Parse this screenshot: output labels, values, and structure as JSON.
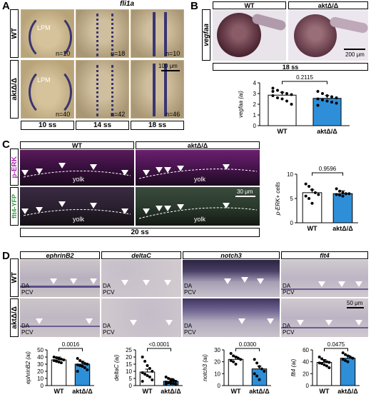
{
  "panels": {
    "A": {
      "letter": "A",
      "gene": "fli1a",
      "rows": [
        "WT",
        "aktΔ/Δ"
      ],
      "stages": [
        "10 ss",
        "14 ss",
        "18 ss"
      ],
      "lpm_label": "LPM",
      "counts": [
        [
          "n=10",
          "n=18",
          "n=10"
        ],
        [
          "n=40",
          "n=42",
          "n=46"
        ]
      ],
      "scale": "100 μm"
    },
    "B": {
      "letter": "B",
      "gene": "vegfaa",
      "cols": [
        "WT",
        "aktΔ/Δ"
      ],
      "stage": "18 ss",
      "scale": "200 μm"
    },
    "C": {
      "letter": "C",
      "cols": [
        "WT",
        "aktΔ/Δ"
      ],
      "rows": [
        "p-ERK",
        "flt4-YFP"
      ],
      "yolk": "yolk",
      "stage": "20 ss",
      "scale": "30 μm"
    },
    "D": {
      "letter": "D",
      "genes": [
        "ephrinB2",
        "deltaC",
        "notch3",
        "flt4"
      ],
      "rows": [
        "WT",
        "aktΔ/Δ"
      ],
      "da": "DA",
      "pcv": "PCV",
      "scale": "50 μm"
    }
  },
  "chart_data": [
    {
      "id": "B-vegfaa",
      "type": "bar",
      "categories": [
        "WT",
        "aktΔ/Δ"
      ],
      "values": [
        2.85,
        2.55
      ],
      "ylabel": "vegfaa (ai)",
      "ylim": [
        0,
        4
      ],
      "yticks": [
        0,
        1,
        2,
        3,
        4
      ],
      "pvalue": "0.2115",
      "colors": [
        "#ffffff",
        "#2e8fd8"
      ],
      "points": [
        [
          3.5,
          3.3,
          3.1,
          3.0,
          2.9,
          2.8,
          2.6,
          2.5,
          2.3,
          2.0,
          3.2
        ],
        [
          3.2,
          3.0,
          2.8,
          2.7,
          2.6,
          2.5,
          2.4,
          2.3,
          2.2,
          2.1,
          1.9
        ]
      ]
    },
    {
      "id": "C-pERK",
      "type": "bar",
      "categories": [
        "WT",
        "aktΔ/Δ"
      ],
      "values": [
        6.2,
        6.0
      ],
      "ylabel": "p-ERK+ cells",
      "ylim": [
        0,
        10
      ],
      "yticks": [
        0,
        5,
        10
      ],
      "pvalue": "0.9596",
      "colors": [
        "#ffffff",
        "#2e8fd8"
      ],
      "points": [
        [
          8.0,
          7.5,
          6.8,
          6.2,
          5.8,
          5.5,
          5.0,
          4.0
        ],
        [
          7.0,
          6.5,
          6.2,
          6.0,
          6.0,
          5.8,
          5.7,
          5.5
        ]
      ]
    },
    {
      "id": "D-ephrinB2",
      "type": "bar",
      "categories": [
        "WT",
        "aktΔ/Δ"
      ],
      "values": [
        36,
        30
      ],
      "ylabel": "ephrinB2 (ai)",
      "ylim": [
        0,
        50
      ],
      "yticks": [
        0,
        10,
        20,
        30,
        40,
        50
      ],
      "pvalue": "0.0016",
      "colors": [
        "#ffffff",
        "#2e8fd8"
      ],
      "points": [
        [
          40,
          39,
          38,
          37,
          36,
          35,
          34,
          33,
          32
        ],
        [
          38,
          35,
          33,
          31,
          30,
          29,
          28,
          27,
          25,
          22,
          20
        ]
      ]
    },
    {
      "id": "D-deltaC",
      "type": "bar",
      "categories": [
        "WT",
        "aktΔ/Δ"
      ],
      "values": [
        9.5,
        3.0
      ],
      "ylabel": "deltaC (ai)",
      "ylim": [
        0,
        25
      ],
      "yticks": [
        0,
        5,
        10,
        15,
        20,
        25
      ],
      "pvalue": "<0.0001",
      "colors": [
        "#ffffff",
        "#2e8fd8"
      ],
      "points": [
        [
          20,
          17,
          14,
          12,
          10,
          9,
          8,
          7,
          6,
          4,
          3
        ],
        [
          6,
          5,
          4,
          3.5,
          3,
          2.5,
          2,
          1.5,
          1.5,
          1,
          1,
          2,
          3,
          4
        ]
      ]
    },
    {
      "id": "D-notch3",
      "type": "bar",
      "categories": [
        "WT",
        "aktΔ/Δ"
      ],
      "values": [
        22,
        14
      ],
      "ylabel": "notch3 (ai)",
      "ylim": [
        0,
        30
      ],
      "yticks": [
        0,
        10,
        20,
        30
      ],
      "pvalue": "0.0300",
      "colors": [
        "#ffffff",
        "#2e8fd8"
      ],
      "points": [
        [
          27,
          25,
          24,
          23,
          22,
          21,
          20,
          18
        ],
        [
          22,
          19,
          16,
          14,
          12,
          10,
          8,
          5
        ]
      ]
    },
    {
      "id": "D-flt4",
      "type": "bar",
      "categories": [
        "WT",
        "aktΔ/Δ"
      ],
      "values": [
        39,
        46
      ],
      "ylabel": "flt4 (ai)",
      "ylim": [
        0,
        60
      ],
      "yticks": [
        0,
        20,
        40,
        60
      ],
      "pvalue": "0.0475",
      "colors": [
        "#ffffff",
        "#2e8fd8"
      ],
      "points": [
        [
          48,
          45,
          42,
          40,
          39,
          38,
          37,
          35,
          33,
          30
        ],
        [
          55,
          52,
          50,
          48,
          46,
          44,
          42,
          40
        ]
      ]
    }
  ]
}
